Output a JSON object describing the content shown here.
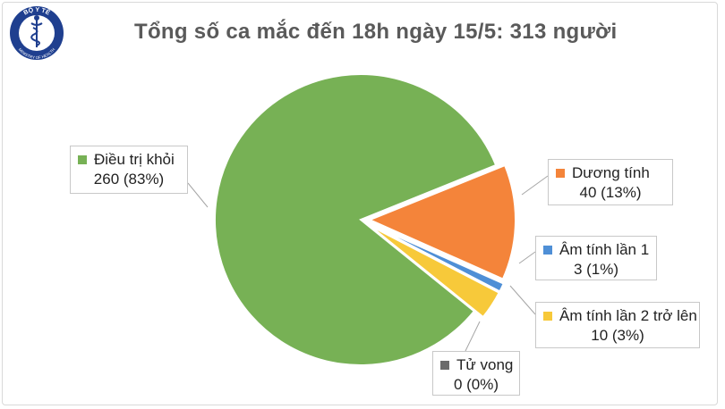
{
  "chart_data": {
    "type": "pie",
    "title": "Tổng số ca mắc đến 18h ngày 15/5: 313 người",
    "total": 313,
    "slices": [
      {
        "name": "Điều trị khỏi",
        "value": 260,
        "percent": 83,
        "value_label": "260 (83%)",
        "color": "#77b155"
      },
      {
        "name": "Dương tính",
        "value": 40,
        "percent": 13,
        "value_label": "40 (13%)",
        "color": "#f4843a"
      },
      {
        "name": "Âm tính lần 1",
        "value": 3,
        "percent": 1,
        "value_label": "3 (1%)",
        "color": "#4f8fd6"
      },
      {
        "name": "Âm tính lần 2 trở lên",
        "value": 10,
        "percent": 3,
        "value_label": "10 (3%)",
        "color": "#f7c93a"
      },
      {
        "name": "Tử vong",
        "value": 0,
        "percent": 0,
        "value_label": "0 (0%)",
        "color": "#6b6b6b"
      }
    ],
    "legend": "callout labels beside slices"
  },
  "logo": {
    "top_text": "BỘ Y TẾ",
    "bottom_text": "MINISTRY OF HEALTH",
    "icon": "caduceus-icon",
    "colors": {
      "ring": "#1f3f8f",
      "inner": "#ffffff"
    }
  }
}
